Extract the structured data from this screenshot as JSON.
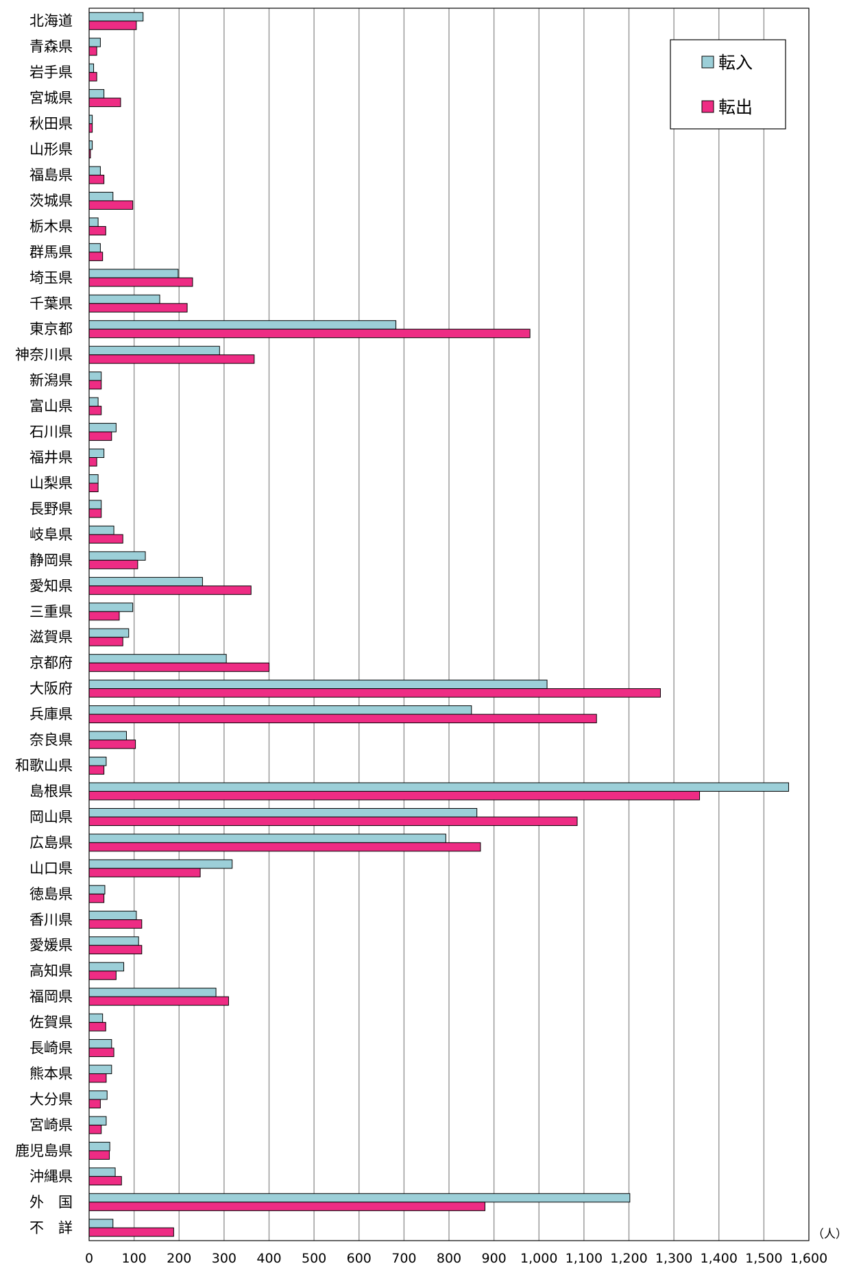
{
  "chart_data": {
    "type": "bar",
    "orientation": "horizontal",
    "unit": "（人）",
    "xlim": [
      0,
      1600
    ],
    "xticks": [
      "0",
      "100",
      "200",
      "300",
      "400",
      "500",
      "600",
      "700",
      "800",
      "900",
      "1,000",
      "1,100",
      "1,200",
      "1,300",
      "1,400",
      "1,500",
      "1,600"
    ],
    "grid": true,
    "legend_position": "top-right",
    "colors": {
      "転入": "#9ccfd8",
      "転出": "#ee2c84"
    },
    "categories": [
      "北海道",
      "青森県",
      "岩手県",
      "宮城県",
      "秋田県",
      "山形県",
      "福島県",
      "茨城県",
      "栃木県",
      "群馬県",
      "埼玉県",
      "千葉県",
      "東京都",
      "神奈川県",
      "新潟県",
      "富山県",
      "石川県",
      "福井県",
      "山梨県",
      "長野県",
      "岐阜県",
      "静岡県",
      "愛知県",
      "三重県",
      "滋賀県",
      "京都府",
      "大阪府",
      "兵庫県",
      "奈良県",
      "和歌山県",
      "島根県",
      "岡山県",
      "広島県",
      "山口県",
      "徳島県",
      "香川県",
      "愛媛県",
      "高知県",
      "福岡県",
      "佐賀県",
      "長崎県",
      "熊本県",
      "大分県",
      "宮崎県",
      "鹿児島県",
      "沖縄県",
      "外　国",
      "不　詳"
    ],
    "series": [
      {
        "name": "転入",
        "values": [
          120,
          25,
          10,
          33,
          7,
          7,
          25,
          53,
          20,
          25,
          198,
          157,
          682,
          290,
          27,
          20,
          60,
          33,
          20,
          27,
          55,
          125,
          252,
          97,
          88,
          305,
          1018,
          850,
          83,
          38,
          1555,
          862,
          793,
          318,
          35,
          105,
          110,
          77,
          282,
          30,
          50,
          50,
          40,
          38,
          46,
          58,
          1202,
          53
        ]
      },
      {
        "name": "転出",
        "values": [
          105,
          17,
          17,
          70,
          7,
          3,
          33,
          97,
          37,
          30,
          230,
          218,
          980,
          367,
          27,
          27,
          50,
          17,
          20,
          27,
          75,
          108,
          360,
          67,
          75,
          400,
          1270,
          1128,
          103,
          33,
          1357,
          1085,
          870,
          247,
          33,
          117,
          117,
          60,
          310,
          37,
          55,
          38,
          25,
          27,
          45,
          72,
          880,
          188
        ]
      }
    ]
  }
}
